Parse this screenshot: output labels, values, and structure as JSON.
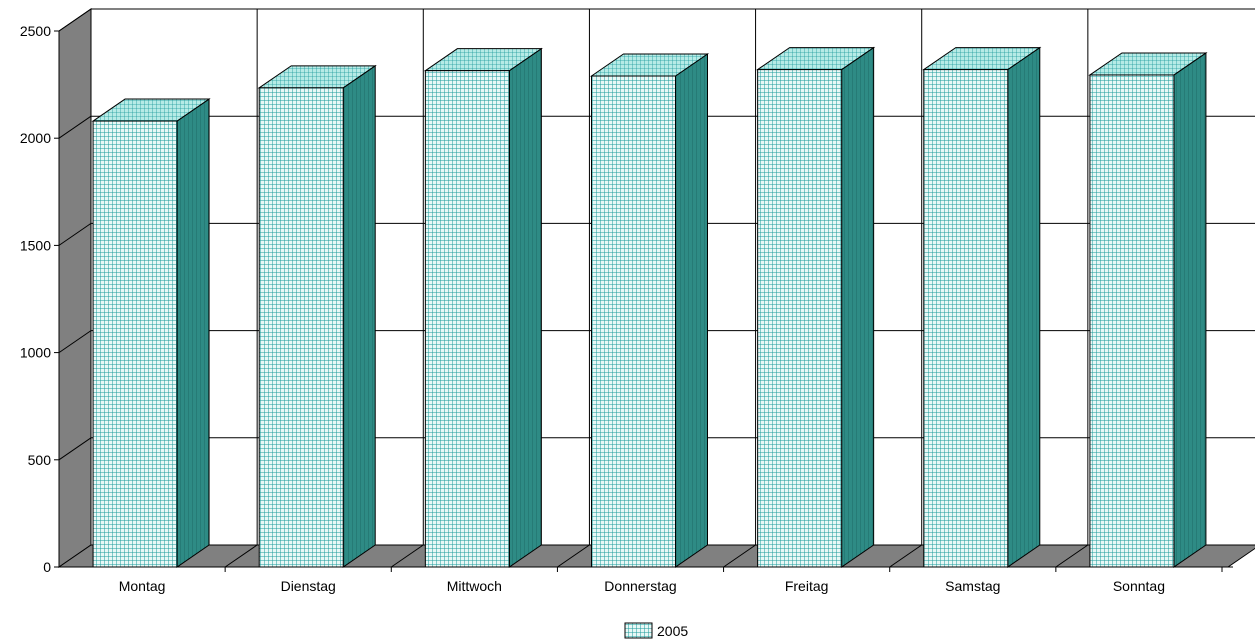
{
  "chart_data": {
    "type": "bar",
    "categories": [
      "Montag",
      "Dienstag",
      "Mittwoch",
      "Donnerstag",
      "Freitag",
      "Samstag",
      "Sonntag"
    ],
    "series": [
      {
        "name": "2005",
        "values": [
          2080,
          2235,
          2315,
          2290,
          2320,
          2320,
          2295
        ]
      }
    ],
    "ylim": [
      0,
      2500
    ],
    "yticks": [
      0,
      500,
      1000,
      1500,
      2000,
      2500
    ],
    "grid": true,
    "legend": "bottom",
    "style": "3d-column",
    "colors": {
      "bar_front": "#e8f8f6",
      "bar_grid": "#1a9a9a",
      "bar_side": "#2e8b85",
      "bar_top": "#b6ebe6",
      "wall": "#808080",
      "floor": "#808080",
      "plot_back": "#ffffff",
      "gridline": "#000000"
    }
  }
}
